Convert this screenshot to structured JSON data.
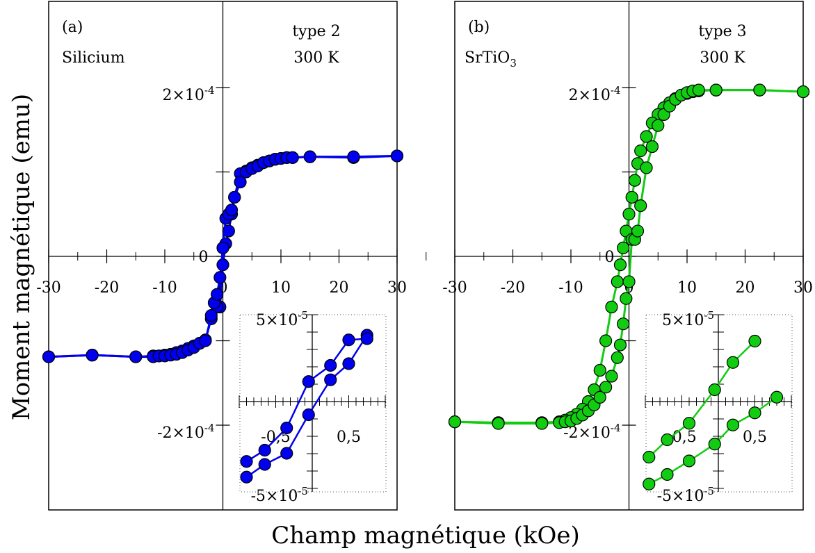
{
  "figure": {
    "ylabel": "Moment magnétique (emu)",
    "xlabel": "Champ magnétique (kOe)"
  },
  "chart_data": [
    {
      "type": "line",
      "panel_label": "(a)",
      "sample": "Silicium",
      "annotation_type": "type 2",
      "temperature": "300 K",
      "xlim": [
        -30,
        30
      ],
      "ylim": [
        -0.00025,
        0.00025
      ],
      "x_ticks": [
        -30,
        -20,
        -10,
        0,
        10,
        20,
        30
      ],
      "x_tick_labels": [
        "-30",
        "-20",
        "-10",
        "0",
        "10",
        "20",
        "30"
      ],
      "y_tick_labels": [
        {
          "value": 0.0002,
          "label": "2×10-4"
        },
        {
          "value": 0,
          "label": "0"
        },
        {
          "value": -0.0002,
          "label": "-2×10-4"
        }
      ],
      "series_color": "#0000ee",
      "series": [
        {
          "points": [
            [
              30,
              0.000119
            ],
            [
              22.5,
              0.000117
            ],
            [
              15,
              0.000118
            ],
            [
              12,
              0.000117
            ],
            [
              11,
              0.000117
            ],
            [
              10,
              0.000116
            ],
            [
              9,
              0.000115
            ],
            [
              8,
              0.000113
            ],
            [
              7,
              0.000111
            ],
            [
              6,
              0.000108
            ],
            [
              5,
              0.000105
            ],
            [
              4,
              0.000101
            ],
            [
              3,
              9.8e-05
            ],
            [
              2,
              7e-05
            ],
            [
              1.5,
              5e-05
            ],
            [
              1,
              3e-05
            ],
            [
              0.5,
              1.5e-05
            ],
            [
              0,
              -1e-05
            ],
            [
              -0.5,
              -6e-05
            ],
            [
              -1,
              -6e-05
            ],
            [
              -2,
              -7.4e-05
            ],
            [
              -3,
              -9.9e-05
            ],
            [
              -4,
              -0.000103
            ],
            [
              -5,
              -0.000106
            ],
            [
              -6,
              -0.000109
            ],
            [
              -7,
              -0.000112
            ],
            [
              -8,
              -0.000114
            ],
            [
              -9,
              -0.000116
            ],
            [
              -10,
              -0.000117
            ],
            [
              -11,
              -0.000118
            ],
            [
              -12,
              -0.000118
            ],
            [
              -15,
              -0.000119
            ],
            [
              -22.5,
              -0.000117
            ],
            [
              -30,
              -0.000119
            ]
          ]
        },
        {
          "points": [
            [
              -30,
              -0.000119
            ],
            [
              -22.5,
              -0.000117
            ],
            [
              -15,
              -0.000119
            ],
            [
              -12,
              -0.000119
            ],
            [
              -11,
              -0.000118
            ],
            [
              -10,
              -0.000118
            ],
            [
              -9,
              -0.000117
            ],
            [
              -8,
              -0.000116
            ],
            [
              -7,
              -0.000114
            ],
            [
              -6,
              -0.000111
            ],
            [
              -5,
              -0.000108
            ],
            [
              -4,
              -0.000103
            ],
            [
              -3,
              -0.0001
            ],
            [
              -2,
              -7e-05
            ],
            [
              -1.5,
              -5.5e-05
            ],
            [
              -1,
              -4.5e-05
            ],
            [
              -0.5,
              -2.5e-05
            ],
            [
              0,
              1e-05
            ],
            [
              0.5,
              4.5e-05
            ],
            [
              1,
              5e-05
            ],
            [
              1.5,
              5.5e-05
            ],
            [
              2,
              7e-05
            ],
            [
              3,
              8.8e-05
            ],
            [
              4,
              0.0001
            ],
            [
              5,
              0.000104
            ],
            [
              6,
              0.000107
            ],
            [
              7,
              0.000111
            ],
            [
              8,
              0.000113
            ],
            [
              9,
              0.000115
            ],
            [
              10,
              0.000116
            ],
            [
              11,
              0.000117
            ],
            [
              12,
              0.000117
            ],
            [
              15,
              0.000118
            ],
            [
              22.5,
              0.000118
            ],
            [
              30,
              0.000119
            ]
          ]
        }
      ],
      "inset": {
        "xlim": [
          -1,
          1
        ],
        "ylim": [
          -5e-05,
          5e-05
        ],
        "x_tick_labels": [
          {
            "value": -0.5,
            "label": "-0,5"
          },
          {
            "value": 0.5,
            "label": "0,5"
          }
        ],
        "y_tick_labels": [
          {
            "value": 5e-05,
            "label": "5×10-5"
          },
          {
            "value": -5e-05,
            "label": "-5×10-5"
          }
        ],
        "series": [
          {
            "points": [
              [
                -0.9,
                -4.35e-05
              ],
              [
                -0.65,
                -3.62e-05
              ],
              [
                -0.35,
                -2.98e-05
              ],
              [
                -0.05,
                -7.6e-06
              ],
              [
                0.25,
                1.25e-05
              ],
              [
                0.5,
                2.18e-05
              ],
              [
                0.75,
                3.82e-05
              ]
            ]
          },
          {
            "points": [
              [
                -0.9,
                -3.45e-05
              ],
              [
                -0.65,
                -2.8e-05
              ],
              [
                -0.35,
                -1.52e-05
              ],
              [
                -0.05,
                1.15e-05
              ],
              [
                0.25,
                2.08e-05
              ],
              [
                0.5,
                3.55e-05
              ],
              [
                0.75,
                3.62e-05
              ]
            ]
          }
        ]
      }
    },
    {
      "type": "line",
      "panel_label": "(b)",
      "sample": "SrTiO3",
      "annotation_type": "type 3",
      "temperature": "300 K",
      "xlim": [
        -30,
        30
      ],
      "ylim": [
        -0.00025,
        0.00025
      ],
      "x_ticks": [
        -30,
        -20,
        -10,
        0,
        10,
        20,
        30
      ],
      "x_tick_labels": [
        "-30",
        "-20",
        "-10",
        "0",
        "10",
        "20",
        "30"
      ],
      "y_tick_labels": [
        {
          "value": 0.0002,
          "label": "2×10-4"
        },
        {
          "value": 0,
          "label": "0"
        },
        {
          "value": -0.0002,
          "label": "-2×10-4"
        }
      ],
      "series_color": "#11cc11",
      "series": [
        {
          "points": [
            [
              30,
              0.000195
            ],
            [
              22.5,
              0.000197
            ],
            [
              15,
              0.000197
            ],
            [
              12,
              0.000196
            ],
            [
              11,
              0.000195
            ],
            [
              10,
              0.000193
            ],
            [
              9,
              0.000191
            ],
            [
              8,
              0.000187
            ],
            [
              7,
              0.000182
            ],
            [
              6,
              0.000176
            ],
            [
              5,
              0.000168
            ],
            [
              4,
              0.000158
            ],
            [
              3,
              0.000142
            ],
            [
              2,
              0.000125
            ],
            [
              1.5,
              0.00011
            ],
            [
              1,
              9e-05
            ],
            [
              0.5,
              7e-05
            ],
            [
              0,
              5e-05
            ],
            [
              -0.5,
              3e-05
            ],
            [
              -1,
              1e-05
            ],
            [
              -1.5,
              -1e-05
            ],
            [
              -2,
              -3e-05
            ],
            [
              -3,
              -6e-05
            ],
            [
              -4,
              -0.0001
            ],
            [
              -5,
              -0.000135
            ],
            [
              -6,
              -0.000158
            ],
            [
              -7,
              -0.000172
            ],
            [
              -8,
              -0.000181
            ],
            [
              -9,
              -0.000187
            ],
            [
              -10,
              -0.000191
            ],
            [
              -11,
              -0.000194
            ],
            [
              -12,
              -0.000196
            ],
            [
              -15,
              -0.000197
            ],
            [
              -22.5,
              -0.000197
            ],
            [
              -30,
              -0.000196
            ]
          ]
        },
        {
          "points": [
            [
              -30,
              -0.000196
            ],
            [
              -22.5,
              -0.000198
            ],
            [
              -15,
              -0.000198
            ],
            [
              -12,
              -0.000197
            ],
            [
              -11,
              -0.000196
            ],
            [
              -10,
              -0.000195
            ],
            [
              -9,
              -0.000192
            ],
            [
              -8,
              -0.000188
            ],
            [
              -7,
              -0.000183
            ],
            [
              -6,
              -0.000176
            ],
            [
              -5,
              -0.000167
            ],
            [
              -4,
              -0.000155
            ],
            [
              -3,
              -0.000142
            ],
            [
              -2,
              -0.00012
            ],
            [
              -1.5,
              -0.000105
            ],
            [
              -1,
              -8e-05
            ],
            [
              -0.5,
              -5e-05
            ],
            [
              0,
              -3e-05
            ],
            [
              0.5,
              2e-05
            ],
            [
              1,
              2e-05
            ],
            [
              1.5,
              3e-05
            ],
            [
              2,
              6e-05
            ],
            [
              3,
              0.000105
            ],
            [
              4,
              0.00013
            ],
            [
              5,
              0.000155
            ],
            [
              6,
              0.000168
            ],
            [
              7,
              0.000178
            ],
            [
              8,
              0.000186
            ],
            [
              9,
              0.000191
            ],
            [
              10,
              0.000194
            ],
            [
              11,
              0.000196
            ],
            [
              12,
              0.000197
            ],
            [
              15,
              0.000197
            ],
            [
              22.5,
              0.000197
            ],
            [
              30,
              0.000195
            ]
          ]
        }
      ],
      "inset": {
        "xlim": [
          -1,
          1
        ],
        "ylim": [
          -5e-05,
          5e-05
        ],
        "x_tick_labels": [
          {
            "value": -0.5,
            "label": "-0,5"
          },
          {
            "value": 0.5,
            "label": "0,5"
          }
        ],
        "y_tick_labels": [
          {
            "value": 5e-05,
            "label": "5×10-5"
          },
          {
            "value": -5e-05,
            "label": "-5×10-5"
          }
        ],
        "series": [
          {
            "points": [
              [
                -0.95,
                -3.2e-05
              ],
              [
                -0.7,
                -2.2e-05
              ],
              [
                -0.4,
                -1.25e-05
              ],
              [
                -0.05,
                6.8e-06
              ],
              [
                0.2,
                2.25e-05
              ],
              [
                0.5,
                3.48e-05
              ]
            ]
          },
          {
            "points": [
              [
                -0.95,
                -4.75e-05
              ],
              [
                -0.7,
                -4.2e-05
              ],
              [
                -0.4,
                -3.42e-05
              ],
              [
                -0.05,
                -2.45e-05
              ],
              [
                0.2,
                -1.35e-05
              ],
              [
                0.5,
                -6.5e-06
              ],
              [
                0.8,
                2.5e-06
              ]
            ]
          }
        ]
      }
    }
  ]
}
